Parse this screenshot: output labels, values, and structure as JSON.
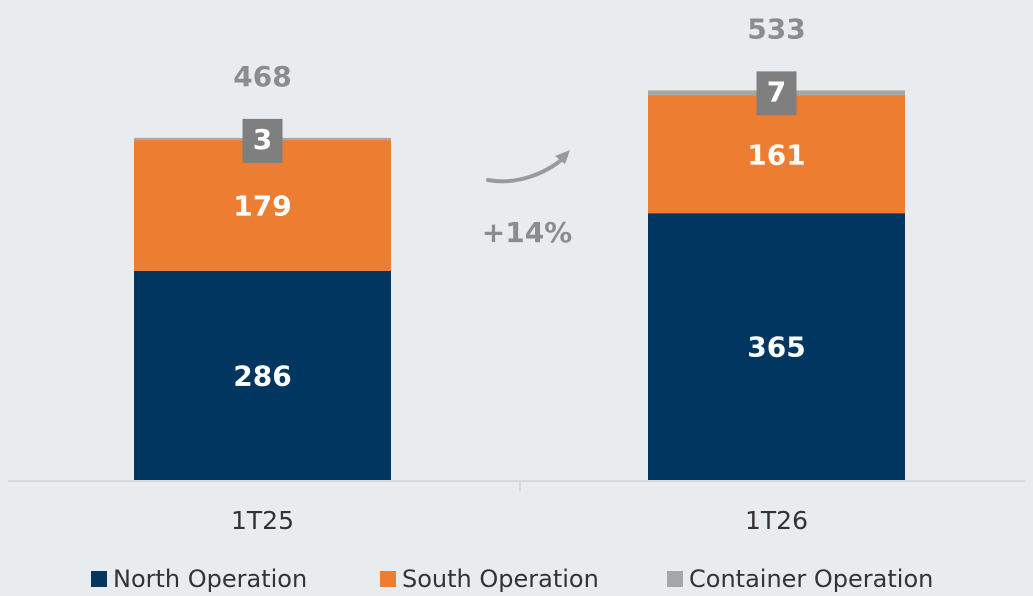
{
  "chart_data": {
    "type": "stacked_bar",
    "categories": [
      "1T25",
      "1T26"
    ],
    "series": [
      {
        "name": "North Operation",
        "color": "#003660",
        "values": [
          286,
          365
        ]
      },
      {
        "name": "South Operation",
        "color": "#ed7d31",
        "values": [
          179,
          161
        ]
      },
      {
        "name": "Container Operation",
        "color": "#a6a6a6",
        "values": [
          3,
          7
        ]
      }
    ],
    "totals": [
      468,
      533
    ],
    "annotation": "+14%",
    "legend": "bottom"
  }
}
